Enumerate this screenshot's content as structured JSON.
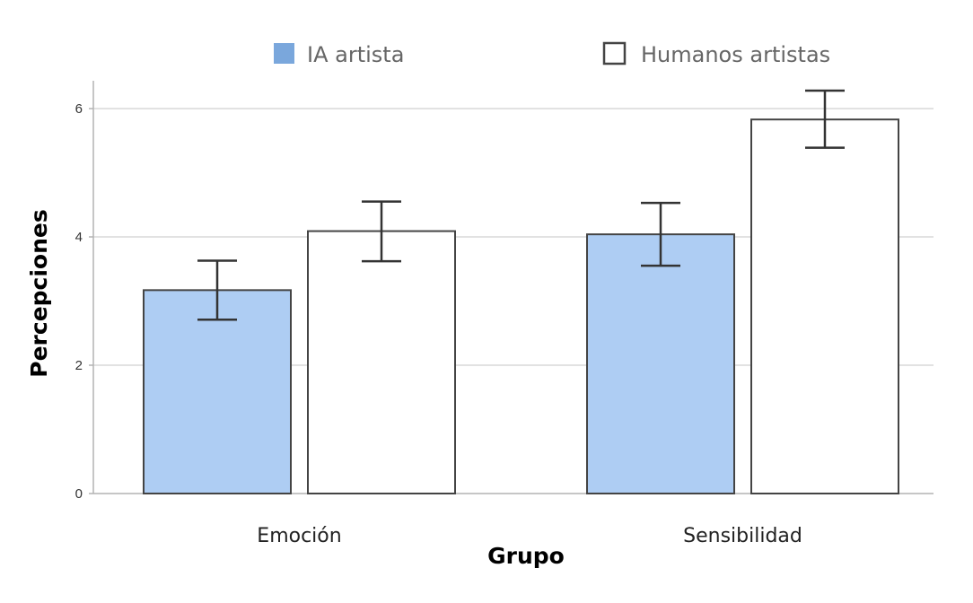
{
  "chart_data": {
    "type": "bar",
    "title": "",
    "xlabel": "Grupo",
    "ylabel": "Percepciones",
    "categories": [
      "Emoción",
      "Sensibilidad"
    ],
    "ylim": [
      0,
      6.5
    ],
    "yticks": [
      0,
      2,
      4,
      6
    ],
    "grid": true,
    "legend_position": "top",
    "error_bars": true,
    "series": [
      {
        "name": "IA artista",
        "color": "#aecdf3",
        "values": [
          3.17,
          4.04
        ],
        "error_low": [
          2.71,
          3.55
        ],
        "error_high": [
          3.63,
          4.53
        ]
      },
      {
        "name": "Humanos artistas",
        "color": "#ffffff",
        "values": [
          4.09,
          5.83
        ],
        "error_low": [
          3.62,
          5.39
        ],
        "error_high": [
          4.55,
          6.28
        ]
      }
    ],
    "colors": {
      "legend_ia_swatch": "#7aa7dc",
      "bar_stroke": "#444444",
      "error_bar": "#333333",
      "gridline": "#d9d9d9",
      "axis_line": "#b3b3b3"
    }
  }
}
